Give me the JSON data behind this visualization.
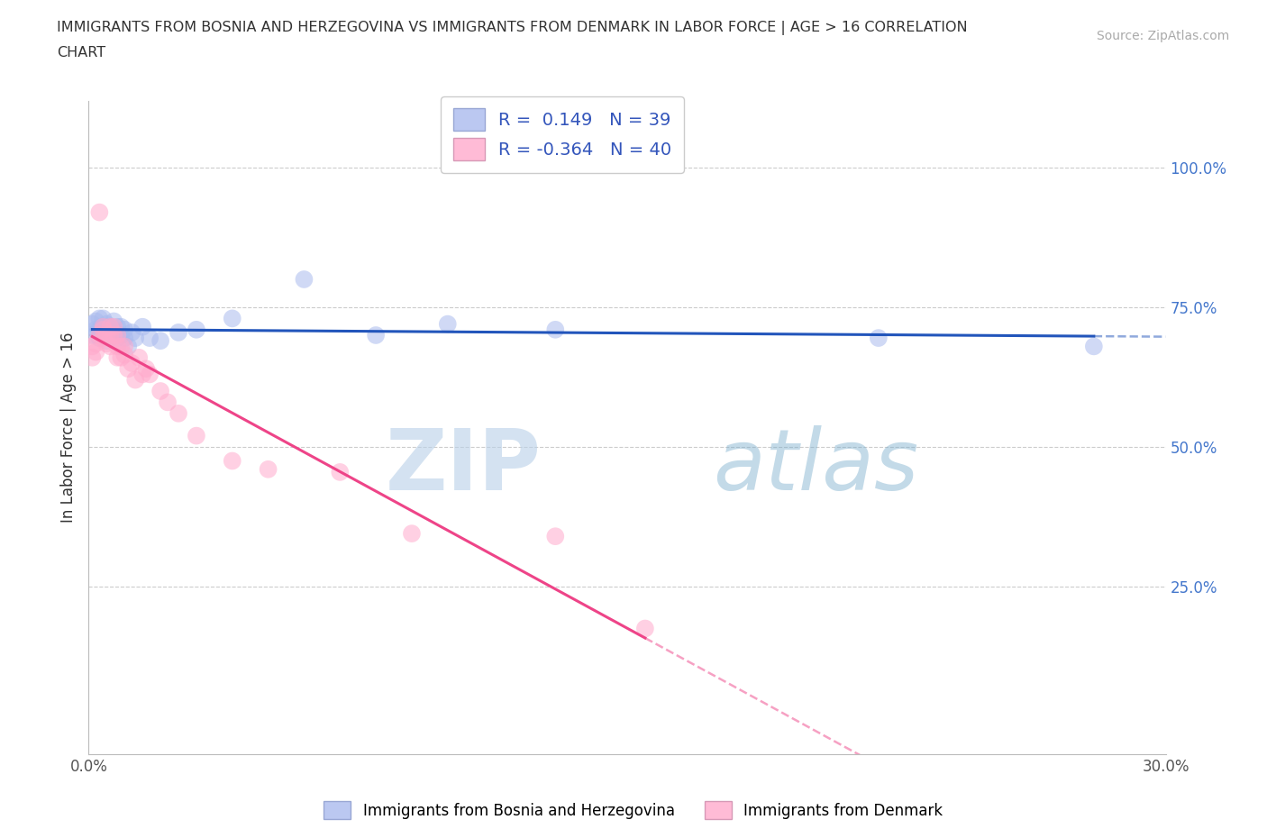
{
  "title_line1": "IMMIGRANTS FROM BOSNIA AND HERZEGOVINA VS IMMIGRANTS FROM DENMARK IN LABOR FORCE | AGE > 16 CORRELATION",
  "title_line2": "CHART",
  "source_text": "Source: ZipAtlas.com",
  "ylabel": "In Labor Force | Age > 16",
  "blue_label": "Immigrants from Bosnia and Herzegovina",
  "pink_label": "Immigrants from Denmark",
  "blue_R": 0.149,
  "blue_N": 39,
  "pink_R": -0.364,
  "pink_N": 40,
  "blue_color": "#aabbee",
  "pink_color": "#ffaacc",
  "blue_line_color": "#2255bb",
  "pink_line_color": "#ee4488",
  "xlim": [
    0.0,
    0.3
  ],
  "ylim": [
    -0.05,
    1.12
  ],
  "yticks": [
    0.25,
    0.5,
    0.75,
    1.0
  ],
  "ytick_labels": [
    "25.0%",
    "50.0%",
    "75.0%",
    "100.0%"
  ],
  "xticks": [
    0.0,
    0.05,
    0.1,
    0.15,
    0.2,
    0.25,
    0.3
  ],
  "blue_x": [
    0.001,
    0.001,
    0.002,
    0.002,
    0.003,
    0.003,
    0.003,
    0.004,
    0.004,
    0.004,
    0.005,
    0.005,
    0.005,
    0.006,
    0.006,
    0.007,
    0.007,
    0.007,
    0.008,
    0.008,
    0.009,
    0.009,
    0.01,
    0.01,
    0.011,
    0.012,
    0.013,
    0.015,
    0.017,
    0.02,
    0.025,
    0.03,
    0.04,
    0.06,
    0.08,
    0.1,
    0.13,
    0.22,
    0.28
  ],
  "blue_y": [
    0.72,
    0.7,
    0.71,
    0.725,
    0.695,
    0.71,
    0.73,
    0.7,
    0.715,
    0.73,
    0.69,
    0.705,
    0.72,
    0.695,
    0.715,
    0.7,
    0.71,
    0.725,
    0.695,
    0.715,
    0.7,
    0.715,
    0.695,
    0.71,
    0.68,
    0.705,
    0.695,
    0.715,
    0.695,
    0.69,
    0.705,
    0.71,
    0.73,
    0.8,
    0.7,
    0.72,
    0.71,
    0.695,
    0.68
  ],
  "pink_x": [
    0.001,
    0.001,
    0.002,
    0.002,
    0.003,
    0.003,
    0.004,
    0.004,
    0.004,
    0.005,
    0.005,
    0.006,
    0.006,
    0.006,
    0.007,
    0.007,
    0.008,
    0.008,
    0.008,
    0.009,
    0.009,
    0.01,
    0.01,
    0.011,
    0.012,
    0.013,
    0.014,
    0.015,
    0.016,
    0.017,
    0.02,
    0.022,
    0.025,
    0.03,
    0.04,
    0.05,
    0.07,
    0.09,
    0.13,
    0.155
  ],
  "pink_y": [
    0.68,
    0.66,
    0.67,
    0.685,
    0.92,
    0.7,
    0.71,
    0.695,
    0.715,
    0.7,
    0.685,
    0.7,
    0.715,
    0.68,
    0.7,
    0.715,
    0.7,
    0.66,
    0.68,
    0.66,
    0.68,
    0.665,
    0.68,
    0.64,
    0.65,
    0.62,
    0.66,
    0.63,
    0.64,
    0.63,
    0.6,
    0.58,
    0.56,
    0.52,
    0.475,
    0.46,
    0.455,
    0.345,
    0.34,
    0.175
  ],
  "watermark_zip": "ZIP",
  "watermark_atlas": "atlas",
  "background_color": "#ffffff",
  "grid_color": "#cccccc"
}
